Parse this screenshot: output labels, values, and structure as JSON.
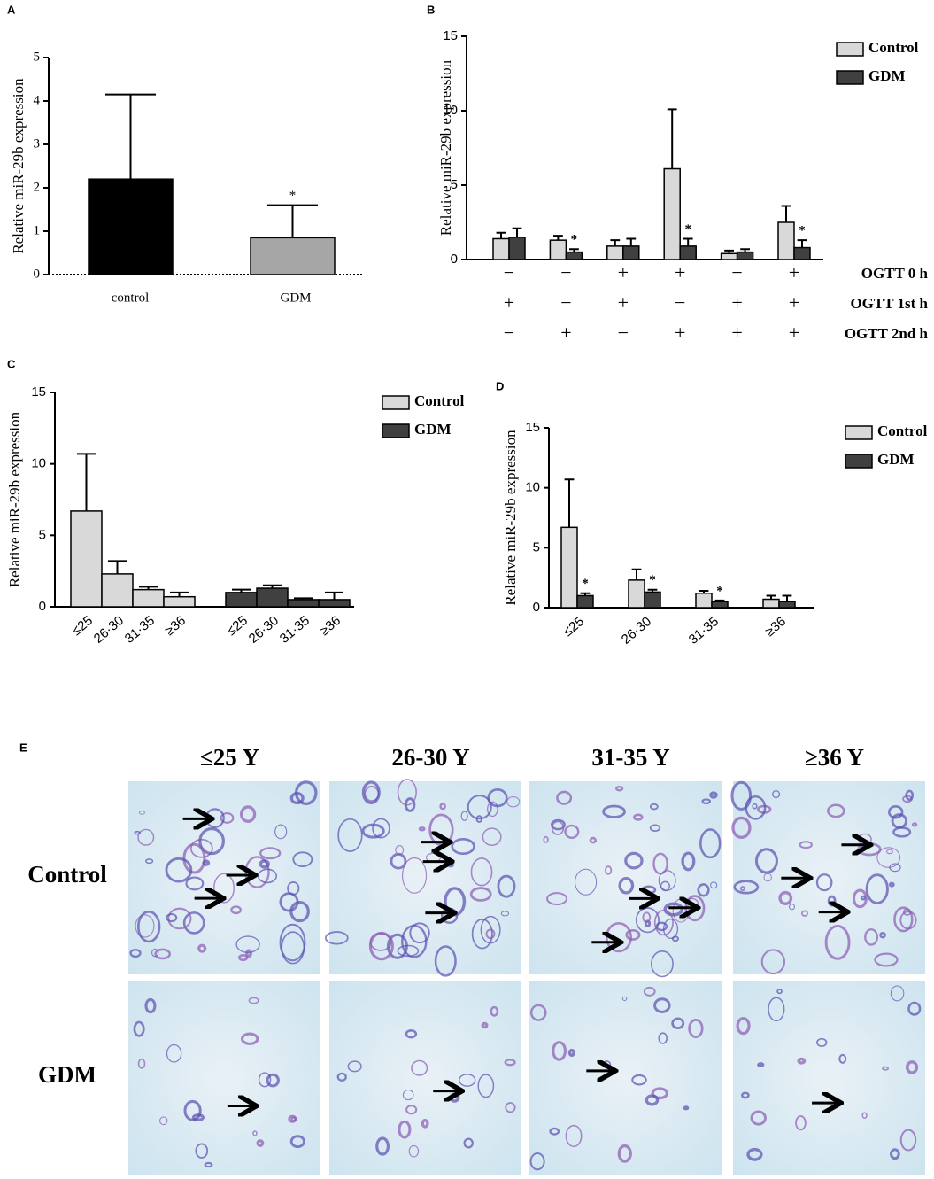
{
  "chart_data": [
    {
      "panel": "A",
      "type": "bar",
      "y_label": "Relative miR-29b expression",
      "categories": [
        "control",
        "GDM"
      ],
      "values": [
        2.2,
        0.85
      ],
      "errors": [
        1.95,
        0.75
      ],
      "colors": [
        "#000000",
        "#a6a6a6"
      ],
      "significance_label": "*",
      "significant": [
        false,
        true
      ],
      "ylim": [
        0,
        5
      ],
      "yticks": [
        0,
        1,
        2,
        3,
        4,
        5
      ]
    },
    {
      "panel": "B",
      "type": "bar",
      "y_label": "Relative miR-29b expression",
      "significance_label": "*",
      "series": [
        {
          "name": "Control",
          "color": "#d9d9d9",
          "values": [
            1.4,
            1.3,
            0.9,
            6.1,
            0.4,
            2.5
          ],
          "errors": [
            0.4,
            0.3,
            0.4,
            4.0,
            0.2,
            1.1
          ],
          "significant": [
            false,
            false,
            false,
            false,
            false,
            false
          ]
        },
        {
          "name": "GDM",
          "color": "#404040",
          "values": [
            1.5,
            0.5,
            0.9,
            0.9,
            0.5,
            0.8
          ],
          "errors": [
            0.6,
            0.2,
            0.5,
            0.5,
            0.2,
            0.5
          ],
          "significant": [
            false,
            true,
            false,
            true,
            false,
            true
          ]
        }
      ],
      "sign_rows": [
        {
          "label": "OGTT 0 h",
          "signs": [
            "−",
            "−",
            "+",
            "+",
            "−",
            "+"
          ]
        },
        {
          "label": "OGTT 1st h",
          "signs": [
            "+",
            "−",
            "+",
            "−",
            "+",
            "+"
          ]
        },
        {
          "label": "OGTT 2nd h",
          "signs": [
            "−",
            "+",
            "−",
            "+",
            "+",
            "+"
          ]
        }
      ],
      "ylim": [
        0,
        15
      ],
      "yticks": [
        0,
        5,
        10,
        15
      ],
      "legend": "top-right"
    },
    {
      "panel": "C",
      "type": "bar",
      "y_label": "Relative miR-29b expression",
      "categories": [
        "≤25",
        "26·30",
        "31·35",
        "≥36",
        "≤25",
        "26·30",
        "31·35",
        "≥36"
      ],
      "series": [
        {
          "name": "Control",
          "color": "#d9d9d9",
          "values": [
            6.7,
            2.3,
            1.2,
            0.7,
            null,
            null,
            null,
            null
          ],
          "errors": [
            4.0,
            0.9,
            0.2,
            0.3,
            null,
            null,
            null,
            null
          ]
        },
        {
          "name": "GDM",
          "color": "#404040",
          "values": [
            null,
            null,
            null,
            null,
            1.0,
            1.3,
            0.5,
            0.5
          ],
          "errors": [
            null,
            null,
            null,
            null,
            0.2,
            0.2,
            0.1,
            0.5
          ]
        }
      ],
      "ylim": [
        0,
        15
      ],
      "yticks": [
        0,
        5,
        10,
        15
      ],
      "legend": "top-right"
    },
    {
      "panel": "D",
      "type": "bar",
      "y_label": "Relative miR-29b expression",
      "significance_label": "*",
      "categories": [
        "≤25",
        "26·30",
        "31·35",
        "≥36"
      ],
      "series": [
        {
          "name": "Control",
          "color": "#d9d9d9",
          "values": [
            6.7,
            2.3,
            1.2,
            0.7
          ],
          "errors": [
            4.0,
            0.9,
            0.2,
            0.3
          ],
          "significant": [
            false,
            false,
            false,
            false
          ]
        },
        {
          "name": "GDM",
          "color": "#404040",
          "values": [
            1.0,
            1.3,
            0.5,
            0.5
          ],
          "errors": [
            0.2,
            0.2,
            0.1,
            0.5
          ],
          "significant": [
            true,
            true,
            true,
            false
          ]
        }
      ],
      "ylim": [
        0,
        15
      ],
      "yticks": [
        0,
        5,
        10,
        15
      ],
      "legend": "top-right"
    }
  ],
  "figure_e": {
    "panel": "E",
    "columns": [
      "≤25 Y",
      "26-30 Y",
      "31-35 Y",
      "≥36 Y"
    ],
    "rows": [
      "Control",
      "GDM"
    ]
  }
}
